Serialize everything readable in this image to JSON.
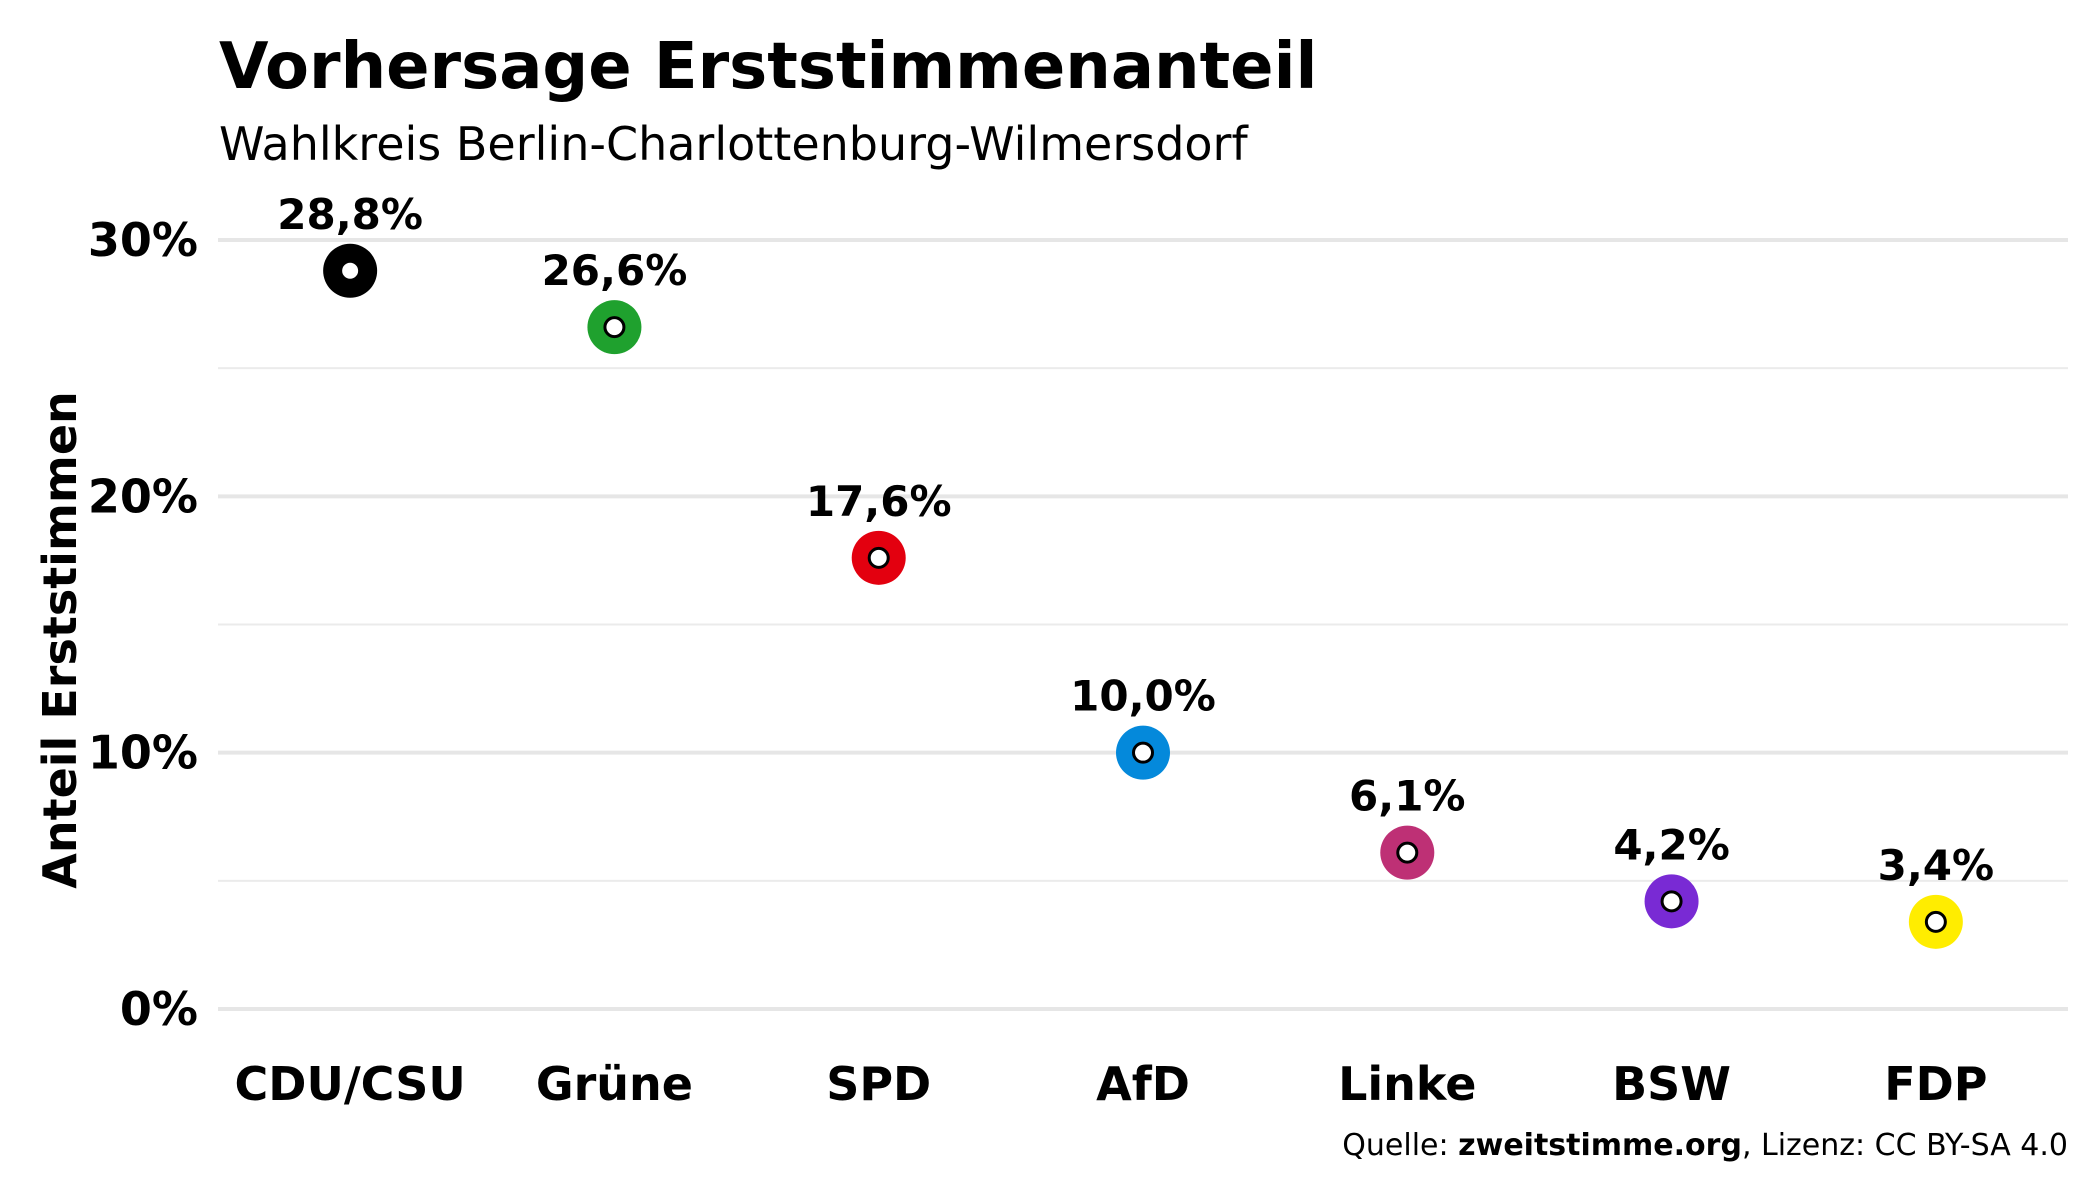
{
  "chart_data": {
    "type": "scatter",
    "title": "Vorhersage Erststimmenanteil",
    "subtitle": "Wahlkreis Berlin-Charlottenburg-Wilmersdorf",
    "xlabel": "",
    "ylabel": "Anteil Erststimmen",
    "ylim": [
      0,
      31
    ],
    "yticks": [
      0,
      10,
      20,
      30
    ],
    "ytick_labels": [
      "0%",
      "10%",
      "20%",
      "30%"
    ],
    "minor_gridlines": [
      5,
      15,
      25
    ],
    "grid": true,
    "legend": "none",
    "categories": [
      "CDU/CSU",
      "Grüne",
      "SPD",
      "AfD",
      "Linke",
      "BSW",
      "FDP"
    ],
    "values": [
      28.8,
      26.6,
      17.6,
      10.0,
      6.1,
      4.2,
      3.4
    ],
    "value_labels": [
      "28,8%",
      "26,6%",
      "17,6%",
      "10,0%",
      "6,1%",
      "4,2%",
      "3,4%"
    ],
    "colors": [
      "#000000",
      "#1fa12e",
      "#e3000f",
      "#0489db",
      "#be3075",
      "#792ad4",
      "#ffed00"
    ],
    "caption": {
      "prefix": "Quelle: ",
      "source": "zweitstimme.org",
      "suffix": ", Lizenz: CC BY-SA 4.0"
    }
  }
}
